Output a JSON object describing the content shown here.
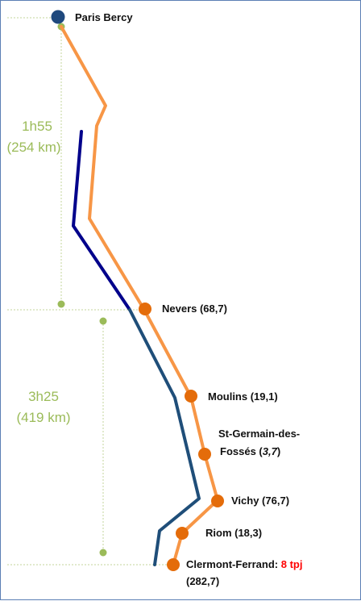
{
  "origin": {
    "label": "Paris Bercy"
  },
  "segments": [
    {
      "time": "1h55",
      "distance": "(254 km)"
    },
    {
      "time": "3h25",
      "distance": "(419 km)"
    }
  ],
  "stations": [
    {
      "label": "Nevers (68,7)"
    },
    {
      "label": "Moulins (19,1)"
    },
    {
      "label_line1": "St-Germain-des-",
      "label_line2_prefix": "Fossés (",
      "label_line2_em": "3,7",
      "label_line2_suffix": ")"
    },
    {
      "label": "Vichy (76,7)"
    },
    {
      "label": "Riom (18,3)"
    },
    {
      "label_prefix": "Clermont-Ferrand: ",
      "label_highlight": "8 tpj",
      "label_line2": "(282,7)"
    }
  ],
  "colors": {
    "route_orange": "#f79646",
    "station_orange": "#e46c0a",
    "route_blue_dark": "#00008b",
    "route_blue": "#1f4e79",
    "origin_dot": "#1f497d",
    "marker_green": "#9bbb59",
    "highlight_red": "#ff0000"
  }
}
